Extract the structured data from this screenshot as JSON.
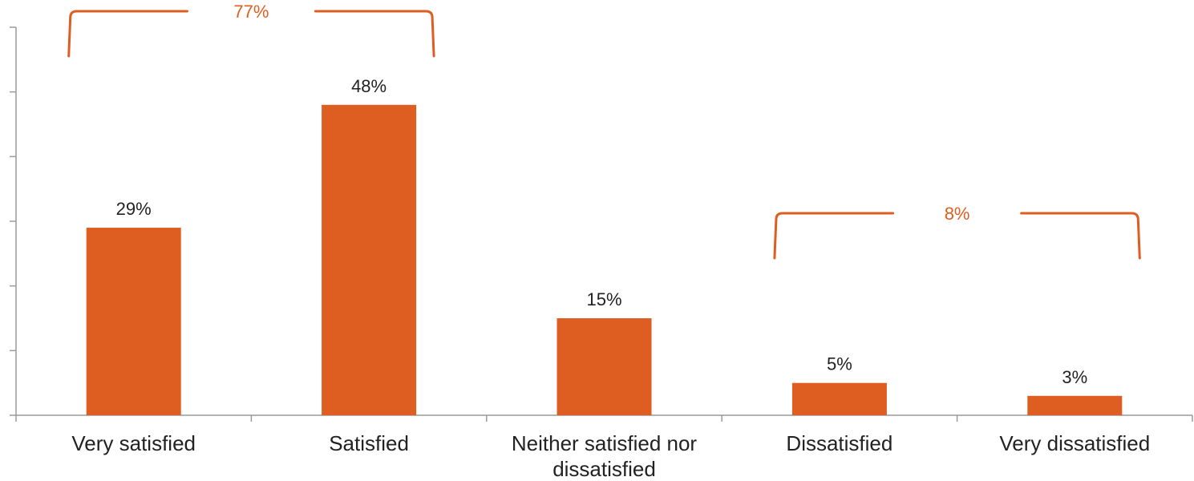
{
  "colors": {
    "bar": "#DE5E22",
    "bracket": "#DE5E22",
    "axis": "#9a9a9a",
    "text": "#222222"
  },
  "chart_data": {
    "type": "bar",
    "categories": [
      "Very satisfied",
      "Satisfied",
      "Neither satisfied nor dissatisfied",
      "Dissatisfied",
      "Very dissatisfied"
    ],
    "values": [
      29,
      48,
      15,
      5,
      3
    ],
    "value_labels": [
      "29%",
      "48%",
      "15%",
      "5%",
      "3%"
    ],
    "ylim": [
      0,
      60
    ],
    "grid": false,
    "legend": "none",
    "annotations": [
      {
        "label": "77%",
        "from_category": 0,
        "to_category": 1
      },
      {
        "label": "8%",
        "from_category": 3,
        "to_category": 4
      }
    ]
  }
}
